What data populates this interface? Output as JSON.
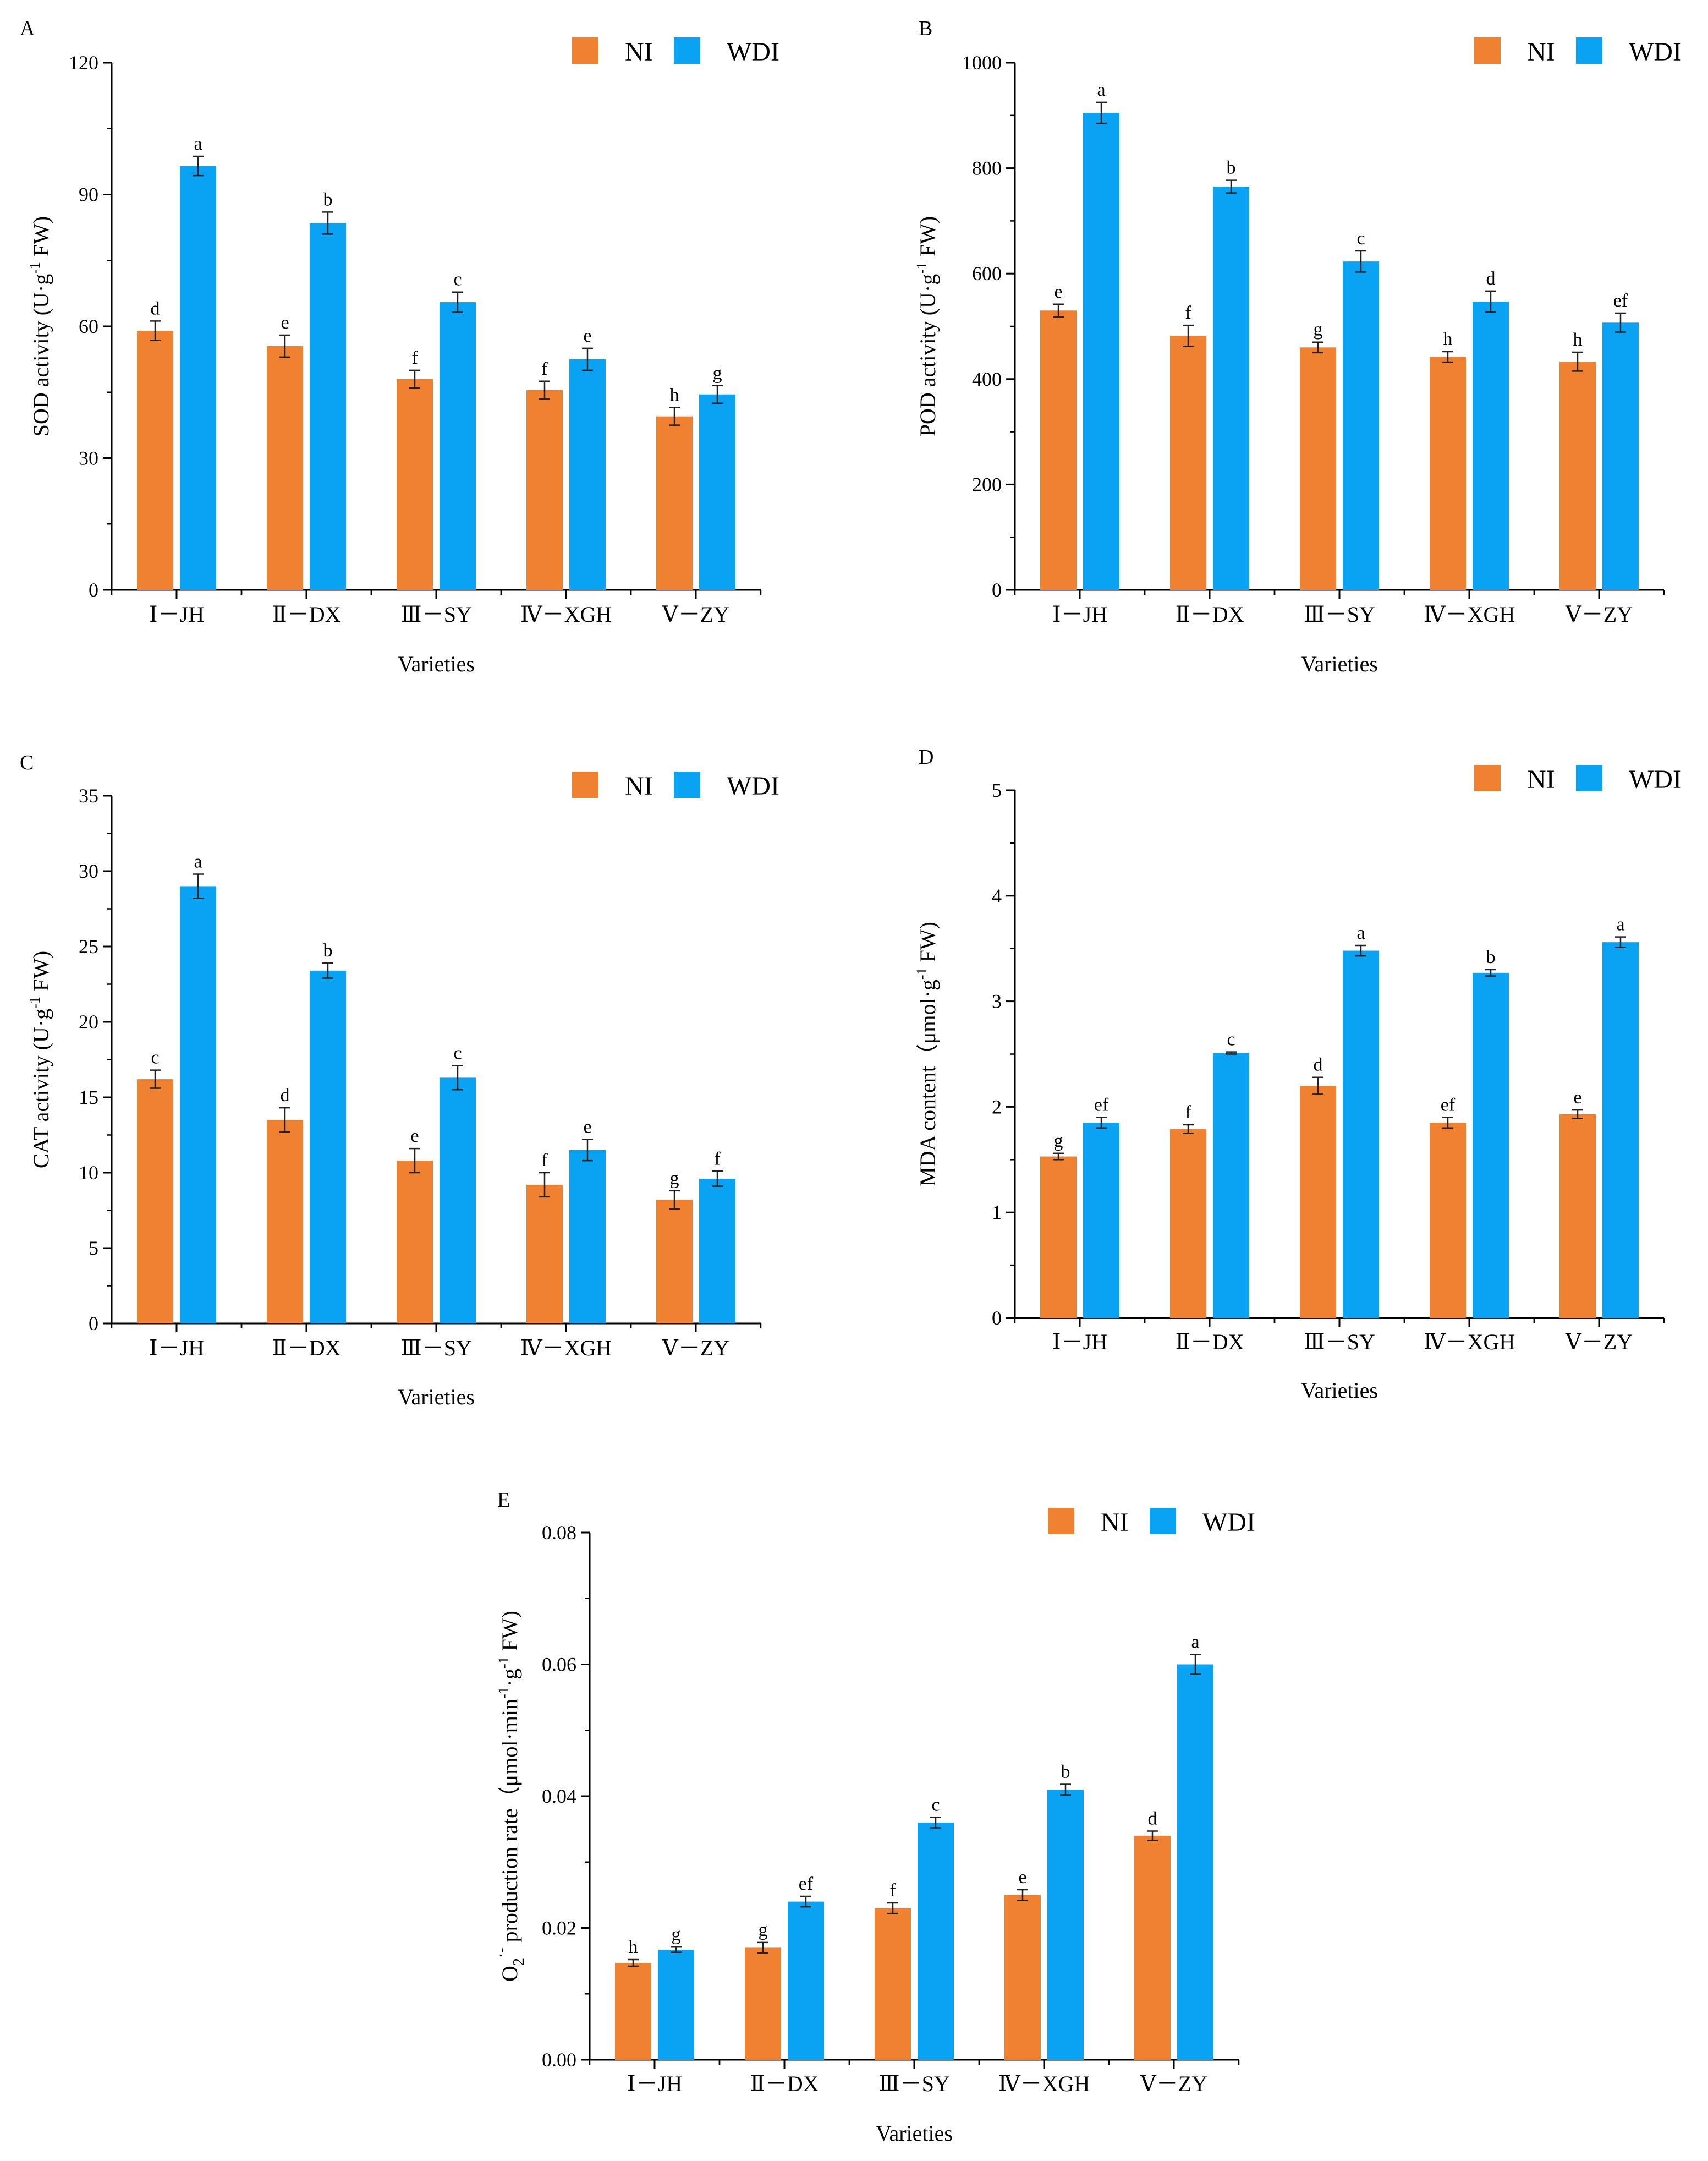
{
  "colors": {
    "NI": "#F08131",
    "WDI": "#0AA2F3"
  },
  "chart_data": [
    {
      "type": "bar",
      "panel": "A",
      "categories": [
        "Ⅰ－JH",
        "Ⅱ－DX",
        "Ⅲ－SY",
        "Ⅳ－XGH",
        "Ⅴ－ZY"
      ],
      "series": [
        {
          "name": "NI",
          "values": [
            59,
            55.5,
            48,
            45.5,
            39.5
          ],
          "errors": [
            2.2,
            2.5,
            2,
            2,
            2
          ],
          "letters": [
            "d",
            "e",
            "f",
            "f",
            "h"
          ]
        },
        {
          "name": "WDI",
          "values": [
            96.5,
            83.5,
            65.5,
            52.5,
            44.5
          ],
          "errors": [
            2.2,
            2.5,
            2.3,
            2.5,
            2
          ],
          "letters": [
            "a",
            "b",
            "c",
            "e",
            "g"
          ]
        }
      ],
      "ylabel": "SOD activity (U·g",
      "ylabel_sup": "-1",
      "ylabel_end": " FW)",
      "xlabel": "Varieties",
      "ylim": [
        0,
        120
      ],
      "yticks": [
        0,
        30,
        60,
        90,
        120
      ],
      "ytick_labels": [
        "0",
        "30",
        "60",
        "90",
        "120"
      ],
      "legend": [
        "NI",
        "WDI"
      ]
    },
    {
      "type": "bar",
      "panel": "B",
      "categories": [
        "Ⅰ－JH",
        "Ⅱ－DX",
        "Ⅲ－SY",
        "Ⅳ－XGH",
        "Ⅴ－ZY"
      ],
      "series": [
        {
          "name": "NI",
          "values": [
            530,
            482,
            460,
            442,
            433
          ],
          "errors": [
            12,
            20,
            10,
            10,
            18
          ],
          "letters": [
            "e",
            "f",
            "g",
            "h",
            "h"
          ]
        },
        {
          "name": "WDI",
          "values": [
            905,
            765,
            623,
            547,
            507
          ],
          "errors": [
            20,
            12,
            20,
            20,
            18
          ],
          "letters": [
            "a",
            "b",
            "c",
            "d",
            "ef"
          ]
        }
      ],
      "ylabel": "POD activity (U·g",
      "ylabel_sup": "-1",
      "ylabel_end": " FW)",
      "xlabel": "Varieties",
      "ylim": [
        0,
        1000
      ],
      "yticks": [
        0,
        200,
        400,
        600,
        800,
        1000
      ],
      "ytick_labels": [
        "0",
        "200",
        "400",
        "600",
        "800",
        "1000"
      ],
      "legend": [
        "NI",
        "WDI"
      ]
    },
    {
      "type": "bar",
      "panel": "C",
      "categories": [
        "Ⅰ－JH",
        "Ⅱ－DX",
        "Ⅲ－SY",
        "Ⅳ－XGH",
        "Ⅴ－ZY"
      ],
      "series": [
        {
          "name": "NI",
          "values": [
            16.2,
            13.5,
            10.8,
            9.2,
            8.2
          ],
          "errors": [
            0.6,
            0.8,
            0.8,
            0.8,
            0.6
          ],
          "letters": [
            "c",
            "d",
            "e",
            "f",
            "g"
          ]
        },
        {
          "name": "WDI",
          "values": [
            29,
            23.4,
            16.3,
            11.5,
            9.6
          ],
          "errors": [
            0.8,
            0.5,
            0.8,
            0.7,
            0.5
          ],
          "letters": [
            "a",
            "b",
            "c",
            "e",
            "f"
          ]
        }
      ],
      "ylabel": "CAT activity (U·g",
      "ylabel_sup": "-1",
      "ylabel_end": " FW)",
      "xlabel": "Varieties",
      "ylim": [
        0,
        35
      ],
      "yticks": [
        0,
        5,
        10,
        15,
        20,
        25,
        30,
        35
      ],
      "ytick_labels": [
        "0",
        "5",
        "10",
        "15",
        "20",
        "25",
        "30",
        "35"
      ],
      "legend": [
        "NI",
        "WDI"
      ]
    },
    {
      "type": "bar",
      "panel": "D",
      "categories": [
        "Ⅰ－JH",
        "Ⅱ－DX",
        "Ⅲ－SY",
        "Ⅳ－XGH",
        "Ⅴ－ZY"
      ],
      "series": [
        {
          "name": "NI",
          "values": [
            1.53,
            1.79,
            2.2,
            1.85,
            1.93
          ],
          "errors": [
            0.03,
            0.04,
            0.08,
            0.05,
            0.04
          ],
          "letters": [
            "g",
            "f",
            "d",
            "ef",
            "e"
          ]
        },
        {
          "name": "WDI",
          "values": [
            1.85,
            2.51,
            3.48,
            3.27,
            3.56
          ],
          "errors": [
            0.05,
            0.01,
            0.05,
            0.03,
            0.05
          ],
          "letters": [
            "ef",
            "c",
            "a",
            "b",
            "a"
          ]
        }
      ],
      "ylabel": "MDA content（μmol·g",
      "ylabel_sup": "-1",
      "ylabel_end": " FW)",
      "xlabel": "Varieties",
      "ylim": [
        0,
        5
      ],
      "yticks": [
        0,
        1,
        2,
        3,
        4,
        5
      ],
      "ytick_labels": [
        "0",
        "1",
        "2",
        "3",
        "4",
        "5"
      ],
      "legend": [
        "NI",
        "WDI"
      ]
    },
    {
      "type": "bar",
      "panel": "E",
      "categories": [
        "Ⅰ－JH",
        "Ⅱ－DX",
        "Ⅲ－SY",
        "Ⅳ－XGH",
        "Ⅴ－ZY"
      ],
      "series": [
        {
          "name": "NI",
          "values": [
            0.0147,
            0.017,
            0.023,
            0.025,
            0.034
          ],
          "errors": [
            0.0005,
            0.0008,
            0.0008,
            0.0008,
            0.0007
          ],
          "letters": [
            "h",
            "g",
            "f",
            "e",
            "d"
          ]
        },
        {
          "name": "WDI",
          "values": [
            0.0167,
            0.024,
            0.036,
            0.041,
            0.06
          ],
          "errors": [
            0.0004,
            0.0008,
            0.0008,
            0.0008,
            0.0015
          ],
          "letters": [
            "g",
            "ef",
            "c",
            "b",
            "a"
          ]
        }
      ],
      "ylabel": "O",
      "ylabel_sub": "2",
      "ylabel_sup": "·-",
      "ylabel_mid": " production rate（μmol·min",
      "ylabel_sup2": "-1",
      "ylabel_mid2": "·g",
      "ylabel_sup3": "-1",
      "ylabel_end": " FW)",
      "xlabel": "Varieties",
      "ylim": [
        0,
        0.08
      ],
      "yticks": [
        0,
        0.02,
        0.04,
        0.06,
        0.08
      ],
      "ytick_labels": [
        "0.00",
        "0.02",
        "0.04",
        "0.06",
        "0.08"
      ],
      "legend": [
        "NI",
        "WDI"
      ]
    }
  ]
}
